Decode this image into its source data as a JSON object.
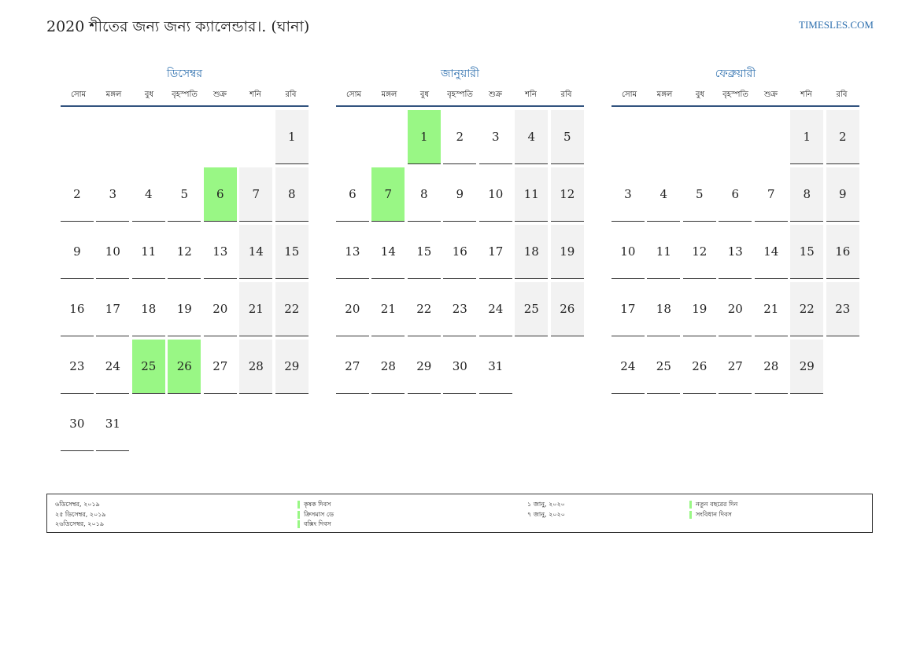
{
  "header": {
    "title": "2020 শীতের জন্য জন্য ক্যালেন্ডার।. (ঘানা)",
    "site": "TIMESLES.COM"
  },
  "weekdays": [
    "সোম",
    "মঙ্গল",
    "বুধ",
    "বৃহস্পতি",
    "শুক্র",
    "শনি",
    "রবি"
  ],
  "colors": {
    "accent": "#2d6fae",
    "holiday": "#99f785",
    "weekend": "#f2f2f2",
    "rule": "#33547f"
  },
  "months": [
    {
      "name": "ডিসেম্বর",
      "offset": 6,
      "days": 31,
      "holidays": [
        6,
        25,
        26
      ]
    },
    {
      "name": "জানুয়ারী",
      "offset": 2,
      "days": 31,
      "holidays": [
        1,
        7
      ]
    },
    {
      "name": "ফেব্রুয়ারী",
      "offset": 5,
      "days": 29,
      "holidays": []
    }
  ],
  "legend": {
    "left": [
      {
        "date": "৬ডিসেম্বর, ২০১৯",
        "name": "কৃষক দিবস"
      },
      {
        "date": "২৫ ডিসেম্বর, ২০১৯",
        "name": "ক্রিসমাস ডে"
      },
      {
        "date": "২৬ডিসেম্বর, ২০১৯",
        "name": "বক্সিং দিবস"
      }
    ],
    "right": [
      {
        "date": "১ জানু, ২০২০",
        "name": "নতুন বছরের দিন"
      },
      {
        "date": "৭ জানু, ২০২০",
        "name": "সংবিধান দিবস"
      }
    ]
  }
}
